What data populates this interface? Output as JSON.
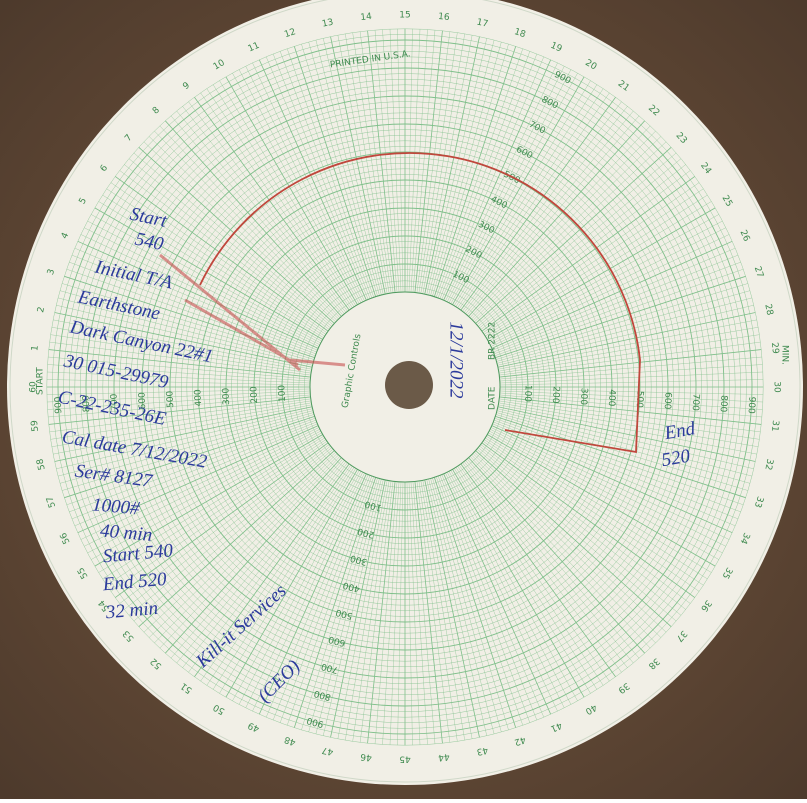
{
  "header": {
    "printed": "PRINTED IN U.S.A.",
    "brand": "Graphic Controls",
    "date_label": "DATE",
    "chart_no": "BR 2222",
    "start_label": "START",
    "min_label": "MIN."
  },
  "dial": {
    "minutes": [
      1,
      2,
      3,
      4,
      5,
      6,
      7,
      8,
      9,
      10,
      11,
      12,
      13,
      14,
      15,
      16,
      17,
      18,
      19,
      20,
      21,
      22,
      23,
      24,
      25,
      26,
      27,
      28,
      29,
      30,
      31,
      32,
      33,
      34,
      35,
      36,
      37,
      38,
      39,
      40,
      41,
      42,
      43,
      44,
      45,
      46,
      47,
      48,
      49,
      50,
      51,
      52,
      53,
      54,
      55,
      56,
      57,
      58,
      59,
      60
    ],
    "scale": [
      100,
      200,
      300,
      400,
      500,
      600,
      700,
      800,
      900
    ]
  },
  "notes": {
    "lines": [
      "Start",
      "540",
      "Initial T/A",
      "Earthstone",
      "Dark Canyon 22#1",
      "30 015-29979",
      "C-22-235-26E",
      "Cal date 7/12/2022",
      "Ser# 8127",
      "1000#",
      "40 min",
      "Start 540",
      "End 520",
      "32 min",
      "Kill-it Services",
      "(CEO)"
    ],
    "end": [
      "End",
      "520"
    ],
    "date": "12/1/2022"
  }
}
